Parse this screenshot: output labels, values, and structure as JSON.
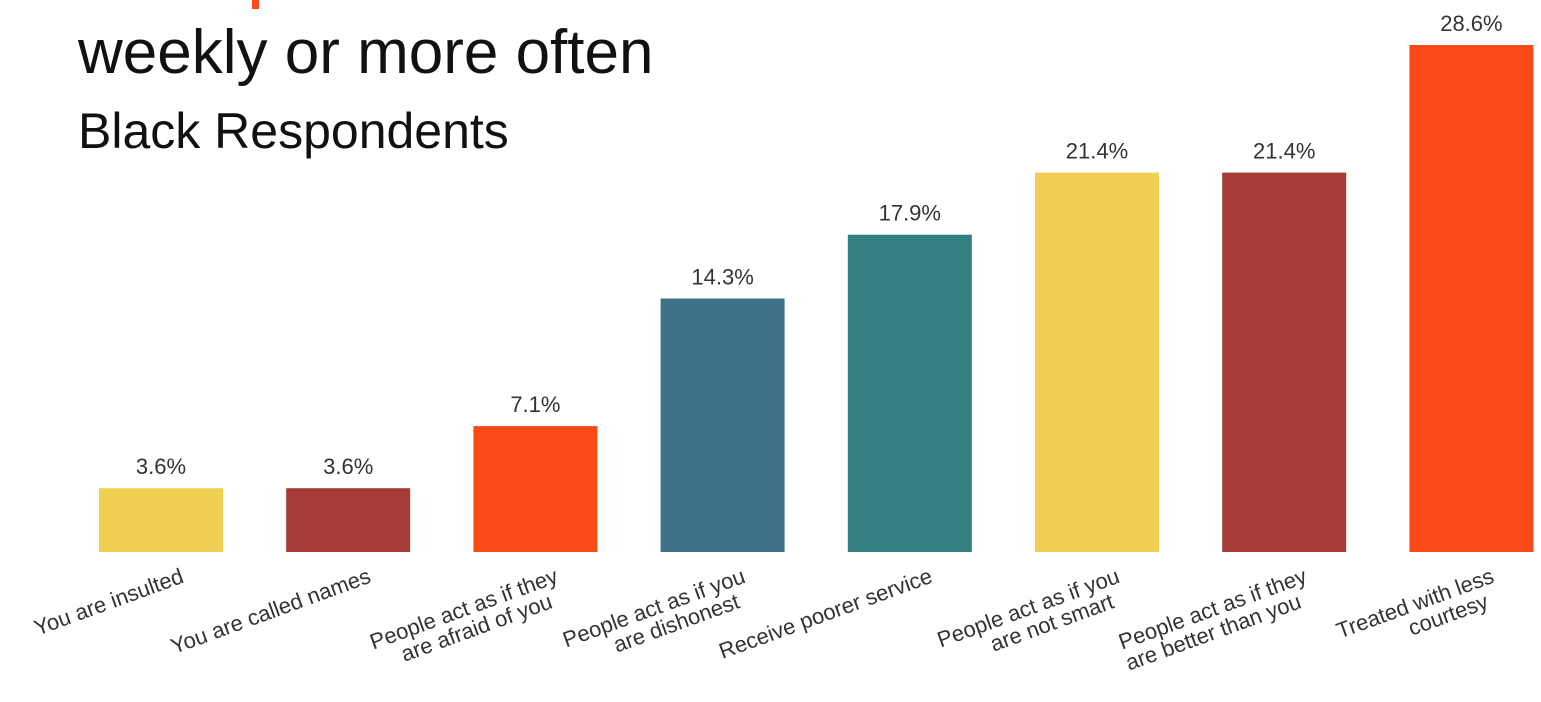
{
  "title": "weekly or more often",
  "subtitle": "Black Respondents",
  "colors": {
    "accent": "#FB4A19",
    "yellow": "#F0D052",
    "maroon": "#A53C38",
    "orange": "#FB4A19",
    "blue": "#3D7289",
    "teal": "#317F7E"
  },
  "chart_data": {
    "type": "bar",
    "title": "weekly or more often",
    "subtitle": "Black Respondents",
    "xlabel": "",
    "ylabel": "",
    "grid": false,
    "ylim": [
      0,
      30
    ],
    "categories": [
      [
        "You are insulted"
      ],
      [
        "You are called names"
      ],
      [
        "People act as if they",
        "are afraid of you"
      ],
      [
        "People act as if you",
        "are dishonest"
      ],
      [
        "Receive poorer service"
      ],
      [
        "People act as if you",
        "are not smart"
      ],
      [
        "People act as if they",
        "are better than you"
      ],
      [
        "Treated with less",
        "courtesy"
      ]
    ],
    "values": [
      3.6,
      3.6,
      7.1,
      14.3,
      17.9,
      21.4,
      21.4,
      28.6
    ],
    "value_labels": [
      "3.6%",
      "3.6%",
      "7.1%",
      "14.3%",
      "17.9%",
      "21.4%",
      "21.4%",
      "28.6%"
    ],
    "bar_colors": [
      "#F0D052",
      "#A53C38",
      "#FB4A19",
      "#3D7289",
      "#317F7E",
      "#F0D052",
      "#A53C38",
      "#FB4A19"
    ]
  }
}
